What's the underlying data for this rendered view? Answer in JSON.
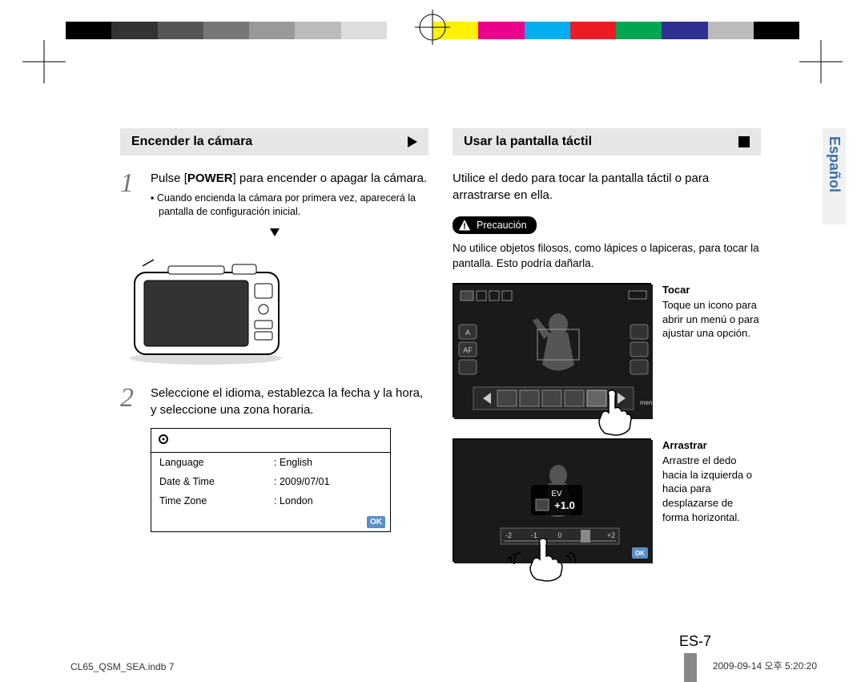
{
  "color_bar": [
    "#000000",
    "#333333",
    "#555555",
    "#777777",
    "#999999",
    "#bbbbbb",
    "#dddddd",
    "#ffffff",
    "#fff200",
    "#ec008c",
    "#00aeef",
    "#ed1c24",
    "#00a651",
    "#2e3192",
    "#bbbbbb",
    "#000000"
  ],
  "left": {
    "header": "Encender la cámara",
    "step1_pre": "Pulse [",
    "step1_key": "POWER",
    "step1_post": "] para encender o apagar la cámara.",
    "step1_bullet": "Cuando encienda la cámara por primera vez, aparecerá la pantalla de configuración inicial.",
    "step2": "Seleccione el idioma, establezca la fecha y la hora, y seleccione una zona horaria.",
    "settings": {
      "rows": [
        {
          "k": "Language",
          "v": ": English"
        },
        {
          "k": "Date & Time",
          "v": ": 2009/07/01"
        },
        {
          "k": "Time Zone",
          "v": ": London"
        }
      ],
      "ok": "OK"
    }
  },
  "right": {
    "header": "Usar la pantalla táctil",
    "intro": "Utilice el dedo para tocar la pantalla táctil o para arrastrarse en ella.",
    "caution_label": "Precaución",
    "caution_text": "No utilice objetos filosos, como lápices o lapiceras, para tocar la pantalla. Esto podría dañarla.",
    "touch1_title": "Tocar",
    "touch1_body": "Toque un icono para abrir un menú o para ajustar una opción.",
    "touch2_title": "Arrastrar",
    "touch2_body": "Arrastre el dedo hacia la izquierda o hacia para desplazarse de forma horizontal.",
    "ev_label": "EV",
    "ev_value": "+1.0",
    "ev_ticks": [
      "-2",
      "-1",
      "0",
      "+1",
      "+2"
    ],
    "ok": "OK"
  },
  "lang_tab": "Español",
  "page_number": "ES-7",
  "footer_left": "CL65_QSM_SEA.indb   7",
  "footer_right": "2009-09-14   오후 5:20:20"
}
